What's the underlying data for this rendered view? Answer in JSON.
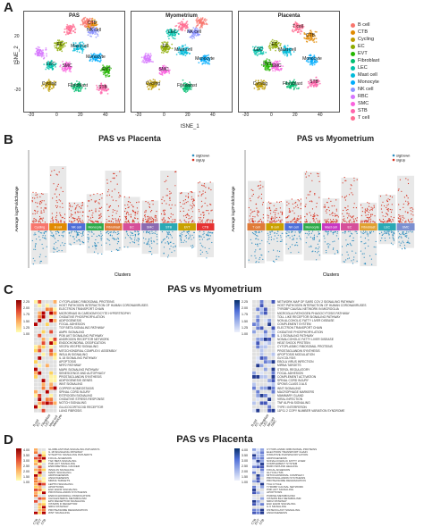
{
  "panels": {
    "A": "A",
    "B": "B",
    "C": "C",
    "D": "D"
  },
  "tsne": {
    "titles": [
      "PAS",
      "Myometrium",
      "Placenta"
    ],
    "ylabel": "tSNE_2",
    "xlabel": "tSNE_1",
    "xticks": [
      "-20",
      "0",
      "20",
      "40"
    ],
    "yticks": [
      "20",
      "0",
      "-20"
    ],
    "legend": [
      {
        "label": "B cell",
        "color": "#F8766D"
      },
      {
        "label": "CTB",
        "color": "#E18A00"
      },
      {
        "label": "Cycling",
        "color": "#BE9C00"
      },
      {
        "label": "EC",
        "color": "#8CAB00"
      },
      {
        "label": "EVT",
        "color": "#24B700"
      },
      {
        "label": "Fibroblast",
        "color": "#00BE70"
      },
      {
        "label": "LEC",
        "color": "#00C1AB"
      },
      {
        "label": "Mast cell",
        "color": "#00BBDA"
      },
      {
        "label": "Monocyte",
        "color": "#00ACFC"
      },
      {
        "label": "NK cell",
        "color": "#8B93FF"
      },
      {
        "label": "RBC",
        "color": "#D575FE"
      },
      {
        "label": "SMC",
        "color": "#F962DD"
      },
      {
        "label": "STB",
        "color": "#FF65AC"
      },
      {
        "label": "T cell",
        "color": "#FF6C91"
      }
    ],
    "cluster_labels": {
      "pas": [
        "NK cell",
        "EC",
        "Mast cell",
        "Monocyte",
        "LEC",
        "SMC",
        "Cycling",
        "Fibroblast",
        "STB",
        "CTB",
        "EVT"
      ],
      "myo": [
        "NK cell",
        "EC",
        "Mast cell",
        "Monocyte",
        "SMC",
        "Fibroblast",
        "Cycling",
        "LEC"
      ],
      "pla": [
        "T cell",
        "EC",
        "Mast cell",
        "Monocyte",
        "SMC",
        "Cycling",
        "Fibroblast",
        "STB",
        "EVT",
        "CTB",
        "LEC"
      ]
    }
  },
  "volcano": {
    "left": {
      "title": "PAS vs Placenta",
      "clusters": [
        "Cycling",
        "B cell",
        "NK cell",
        "Monocyte",
        "Fibroblast",
        "EC",
        "SMC",
        "STB",
        "EVT",
        "CTB"
      ],
      "colors": [
        "#F8766D",
        "#E18A00",
        "#4F6FD8",
        "#2EAA4B",
        "#E07B39",
        "#D64F9A",
        "#8C6BB1",
        "#2AA9B5",
        "#C9A100",
        "#E63232"
      ]
    },
    "right": {
      "title": "PAS vs Myometrium",
      "clusters": [
        "T cell",
        "B cell",
        "NK cell",
        "Monocyte",
        "Mast cell",
        "EC",
        "Fibroblast",
        "LEC",
        "SMC"
      ],
      "colors": [
        "#E07B39",
        "#C9A100",
        "#4F6FD8",
        "#2EAA4B",
        "#C837C2",
        "#D64F9A",
        "#E0A030",
        "#2AA9B5",
        "#7B8FD0"
      ]
    },
    "legend": [
      "sigDown",
      "sigUp"
    ],
    "ylabel": "Average log2FoldChange",
    "xlabel": "Clusters"
  },
  "pathwayC": {
    "title": "PAS vs Myometrium",
    "scale_labels": [
      "2.25",
      "2.00",
      "1.75",
      "1.50",
      "1.25",
      "1.00"
    ],
    "left_cols": [
      "B cell",
      "EC",
      "Fibroblast",
      "LEC",
      "Mast cell",
      "Monocyte"
    ],
    "right_cols": [
      "B cell",
      "EC",
      "Fibroblast",
      "LEC",
      "NK cell",
      "SMC"
    ],
    "left_terms": [
      "CYTOPLASMIC RIBOSOMAL PROTEINS",
      "HOST PATHOGEN INTERACTION OF HUMAN CORONAVIRUSES",
      "ELECTRON TRANSPORT CHAIN",
      "MICRORNAS IN CARDIOMYOCYTE HYPERTROPHY",
      "OXIDATIVE PHOSPHORYLATION",
      "ADIPOGENESIS",
      "FOCAL ADHESION",
      "TGF BETA SIGNALING PATHWAY",
      "AMPK SIGNALING",
      "PI3K AKT SIGNALING PATHWAY",
      "ANDROGEN RECEPTOR NETWORK",
      "ENDOCHONDRAL OSSIFICATION",
      "VEGFA VEGFR2 SIGNALING",
      "MITOCHONDRIAL COMPLEX I ASSEMBLY",
      "INSULIN SIGNALING",
      "IL 18 SIGNALING PATHWAY",
      "APOPTOSIS",
      "NRF2 PATHWAY",
      "MAPK SIGNALING PATHWAY",
      "SENESCENCE AND AUTOPHAGY",
      "PROSTAGLANDIN SYNTHESIS",
      "ADIPOGENESIS GENES",
      "WNT SIGNALING",
      "COPPER HOMEOSTASIS",
      "SPINAL CORD INJURY",
      "ESTROGEN SIGNALING",
      "OXIDATIVE STRESS RESPONSE",
      "NOTCH SIGNALING",
      "GLUCOCORTICOID RECEPTOR",
      "LUNG FIBROSIS"
    ],
    "right_terms": [
      "NETWORK MAP OF SARS COV 2 SIGNALING PATHWAY",
      "HOST PATHOGEN INTERACTION OF HUMAN CORONAVIRUSES",
      "TYROBP CAUSAL NETWORK IN MICROGLIA",
      "MICROGLIA PATHOGEN PHAGOCYTOSIS PATHWAY",
      "TOLL LIKE RECEPTOR SIGNALING PATHWAY",
      "NON ALCOHOLIC FATTY LIVER DISEASE",
      "COMPLEMENT SYSTEM",
      "ELECTRON TRANSPORT CHAIN",
      "OXIDATIVE PHOSPHORYLATION",
      "IL 1 SIGNALING PATHWAY",
      "NONALCOHOLIC FATTY LIVER DISEASE",
      "HEAT SHOCK PROTEIN",
      "CYTOPLASMIC RIBOSOMAL PROTEINS",
      "PROSTAGLANDIN SYNTHESIS",
      "APOPTOSIS MODULATION",
      "GLYCOLYSIS",
      "EBOLA VIRUS INFECTION",
      "MIRNA TARGETS",
      "STEROL REGULATORY",
      "FOCAL ADHESION",
      "COMPLEMENT ACTIVATION",
      "SPINAL CORD INJURY",
      "SPONS CLASS 3 ALS",
      "WNT SIGNALING",
      "MACROPHAGE MARKERS",
      "MAMMARY GLAND",
      "VIRAL INFECTION",
      "TNF ALPHA SIGNALING",
      "TYPE I INTERFERON",
      "11P11 2 COPY NUMBER VARIATION SYNDROME"
    ]
  },
  "pathwayD": {
    "title": "PAS vs Placenta",
    "scale_labels": [
      "4.00",
      "3.50",
      "3.00",
      "2.50",
      "2.00",
      "1.50",
      "1.00"
    ],
    "left_cols": [
      "CTB",
      "EVT",
      "STB"
    ],
    "right_cols": [
      "CTB",
      "EVT",
      "STB"
    ],
    "left_terms": [
      "GLIOBLASTOMA SIGNALING PATHWAYS",
      "IL 18 SIGNALING PATHWAY",
      "SYNAPTIC SIGNALING PATHWAYS",
      "FOCAL ADHESION",
      "TGF BETA SIGNALING",
      "PI3K AKT SIGNALING",
      "ENDOMETRIAL CANCER",
      "INSULIN SIGNALING",
      "MAPK SIGNALING",
      "ADIPOGENESIS",
      "ANGIOGENESIS",
      "MIRNA TARGETS",
      "LEPTIN SIGNALING",
      "APOPTOSIS",
      "EGF EGFR SIGNALING",
      "PROSTAGLANDIN SYNTHESIS",
      "ENDOCHONDRAL OSSIFICATION",
      "CHOLESTEROL METABOLISM",
      "EPO RECEPTOR SIGNALING",
      "VITAMIN D RECEPTOR",
      "NRF2 PATHWAY",
      "PROTEASOME DEGRADATION",
      "WNT SIGNALING"
    ],
    "right_terms": [
      "CYTOPLASMIC RIBOSOMAL PROTEINS",
      "ELECTRON TRANSPORT CHAIN",
      "OXIDATIVE PHOSPHORYLATION",
      "ADIPOGENESIS",
      "NONALCOHOLIC FATTY LIVER",
      "COMPLEMENT SYSTEM",
      "BURN WOUND HEALING",
      "FOCAL ADHESION",
      "GLYCOLYSIS",
      "MITOCHONDRIAL COMPLEX I",
      "PROSTAGLANDIN SYNTHESIS",
      "PROTEASOME DEGRADATION",
      "TCA CYCLE",
      "TYROBP CAUSAL NETWORK",
      "PI3K AKT SIGNALING",
      "APOPTOSIS",
      "PURINE METABOLISM",
      "VITAMIN B12 METABOLISM",
      "NRF2 PATHWAY",
      "EGF EGFR SIGNALING",
      "IL 6 SIGNALING",
      "OSTEOCLAST SIGNALING",
      "ANGIOGENESIS"
    ]
  }
}
